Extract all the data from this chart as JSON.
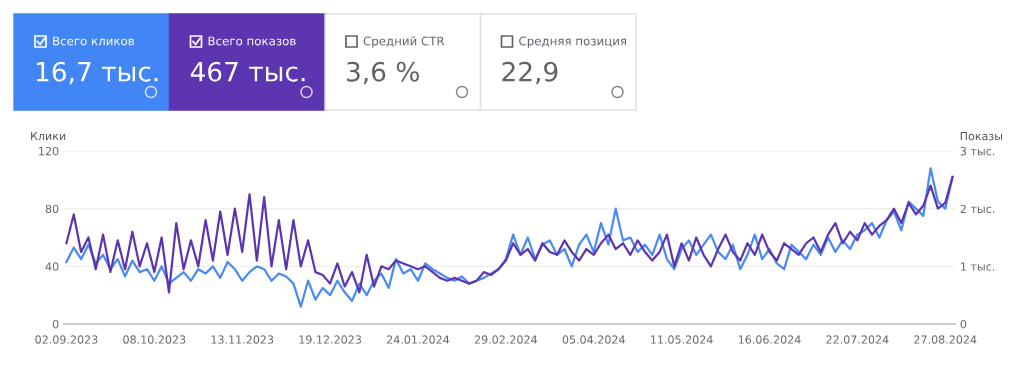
{
  "chart_data": [
    {
      "type": "other",
      "annotations": [
        "Всего кликов",
        "16,7 тыс.",
        "Всего показов",
        "467 тыс.",
        "Средний CTR",
        "3,6 %",
        "Средняя позиция",
        "22,9"
      ],
      "colors": [
        "#4285f4",
        "#5e35b1",
        null,
        null
      ]
    },
    {
      "type": "line",
      "ylabel": "Клики",
      "y2label": "Показы",
      "ylim": [
        0,
        120
      ],
      "yticks": [
        0,
        40,
        80,
        120
      ],
      "y2lim": [
        0,
        3
      ],
      "y2ticks": [
        0,
        {
          "value": 1,
          "label": "1 тыс."
        },
        {
          "value": 2,
          "label": "2 тыс."
        },
        {
          "value": 3,
          "label": "3 тыс."
        }
      ],
      "xlim": [
        "2023-09-01",
        "2024-08-31"
      ],
      "xticks": [
        {
          "value": "2023-09-02",
          "label": "02.09.2023"
        },
        {
          "value": "2023-10-08",
          "label": "08.10.2023"
        },
        {
          "value": "2023-11-13",
          "label": "13.11.2023"
        },
        {
          "value": "2023-12-19",
          "label": "19.12.2023"
        },
        {
          "value": "2024-01-24",
          "label": "24.01.2024"
        },
        {
          "value": "2024-02-29",
          "label": "29.02.2024"
        },
        {
          "value": "2024-04-05",
          "label": "05.04.2024"
        },
        {
          "value": "2024-05-11",
          "label": "11.05.2024"
        },
        {
          "value": "2024-06-16",
          "label": "16.06.2024"
        },
        {
          "value": "2024-07-22",
          "label": "22.07.2024"
        },
        {
          "value": "2024-08-27",
          "label": "27.08.2024"
        }
      ],
      "x": [
        "2023-09-02",
        "2023-09-05",
        "2023-09-08",
        "2023-09-11",
        "2023-09-14",
        "2023-09-17",
        "2023-09-20",
        "2023-09-23",
        "2023-09-26",
        "2023-09-29",
        "2023-10-02",
        "2023-10-05",
        "2023-10-08",
        "2023-10-11",
        "2023-10-14",
        "2023-10-17",
        "2023-10-20",
        "2023-10-23",
        "2023-10-26",
        "2023-10-29",
        "2023-11-01",
        "2023-11-04",
        "2023-11-07",
        "2023-11-10",
        "2023-11-13",
        "2023-11-16",
        "2023-11-19",
        "2023-11-22",
        "2023-11-25",
        "2023-11-28",
        "2023-12-01",
        "2023-12-04",
        "2023-12-07",
        "2023-12-10",
        "2023-12-13",
        "2023-12-16",
        "2023-12-19",
        "2023-12-22",
        "2023-12-25",
        "2023-12-28",
        "2023-12-31",
        "2024-01-03",
        "2024-01-06",
        "2024-01-09",
        "2024-01-12",
        "2024-01-15",
        "2024-01-18",
        "2024-01-21",
        "2024-01-24",
        "2024-01-27",
        "2024-01-30",
        "2024-02-02",
        "2024-02-05",
        "2024-02-08",
        "2024-02-11",
        "2024-02-14",
        "2024-02-17",
        "2024-02-20",
        "2024-02-23",
        "2024-02-26",
        "2024-02-29",
        "2024-03-03",
        "2024-03-06",
        "2024-03-09",
        "2024-03-12",
        "2024-03-15",
        "2024-03-18",
        "2024-03-21",
        "2024-03-24",
        "2024-03-27",
        "2024-03-30",
        "2024-04-02",
        "2024-04-05",
        "2024-04-08",
        "2024-04-11",
        "2024-04-14",
        "2024-04-17",
        "2024-04-20",
        "2024-04-23",
        "2024-04-26",
        "2024-04-29",
        "2024-05-02",
        "2024-05-05",
        "2024-05-08",
        "2024-05-11",
        "2024-05-14",
        "2024-05-17",
        "2024-05-20",
        "2024-05-23",
        "2024-05-26",
        "2024-05-29",
        "2024-06-01",
        "2024-06-04",
        "2024-06-07",
        "2024-06-10",
        "2024-06-13",
        "2024-06-16",
        "2024-06-19",
        "2024-06-22",
        "2024-06-25",
        "2024-06-28",
        "2024-07-01",
        "2024-07-04",
        "2024-07-07",
        "2024-07-10",
        "2024-07-13",
        "2024-07-16",
        "2024-07-19",
        "2024-07-22",
        "2024-07-25",
        "2024-07-28",
        "2024-07-31",
        "2024-08-03",
        "2024-08-06",
        "2024-08-09",
        "2024-08-12",
        "2024-08-15",
        "2024-08-18",
        "2024-08-21",
        "2024-08-24",
        "2024-08-27",
        "2024-08-30"
      ],
      "series": [
        {
          "color": "#5e35b1",
          "axis": "y2",
          "values": [
            1.4,
            1.9,
            1.25,
            1.5,
            0.95,
            1.55,
            0.9,
            1.45,
            0.95,
            1.6,
            1.0,
            1.4,
            0.9,
            1.5,
            0.55,
            1.75,
            0.95,
            1.45,
            1.0,
            1.8,
            1.1,
            1.95,
            1.2,
            2.0,
            1.25,
            2.25,
            1.1,
            2.2,
            1.0,
            1.8,
            0.95,
            1.8,
            1.0,
            1.45,
            0.9,
            0.85,
            0.7,
            1.05,
            0.65,
            0.9,
            0.55,
            1.2,
            0.65,
            1.0,
            0.95,
            1.1,
            1.05,
            1.0,
            0.95,
            1.0,
            0.9,
            0.8,
            0.75,
            0.8,
            0.75,
            0.7,
            0.75,
            0.9,
            0.85,
            0.95,
            1.1,
            1.4,
            1.2,
            1.3,
            1.1,
            1.4,
            1.25,
            1.2,
            1.45,
            1.25,
            1.1,
            1.3,
            1.2,
            1.4,
            1.55,
            1.3,
            1.4,
            1.2,
            1.45,
            1.25,
            1.1,
            1.25,
            1.55,
            1.0,
            1.4,
            1.1,
            1.5,
            1.2,
            1.0,
            1.3,
            1.55,
            1.25,
            1.1,
            1.4,
            1.2,
            1.55,
            1.25,
            1.1,
            1.4,
            1.3,
            1.2,
            1.4,
            1.5,
            1.25,
            1.55,
            1.75,
            1.4,
            1.6,
            1.45,
            1.75,
            1.55,
            1.7,
            1.8,
            2.0,
            1.75,
            2.1,
            1.9,
            2.05,
            2.4,
            2.0,
            2.1,
            2.55
          ]
        },
        {
          "color": "#4a8af4",
          "values": [
            43,
            53,
            45,
            55,
            42,
            48,
            38,
            45,
            33,
            44,
            36,
            38,
            30,
            40,
            28,
            32,
            36,
            30,
            38,
            35,
            40,
            32,
            43,
            38,
            30,
            36,
            40,
            38,
            30,
            35,
            33,
            28,
            12,
            30,
            17,
            25,
            20,
            30,
            22,
            16,
            28,
            20,
            30,
            35,
            25,
            45,
            35,
            38,
            30,
            42,
            38,
            35,
            32,
            30,
            33,
            28,
            30,
            32,
            35,
            38,
            45,
            62,
            48,
            60,
            45,
            55,
            58,
            48,
            52,
            40,
            55,
            62,
            50,
            70,
            55,
            80,
            58,
            60,
            50,
            55,
            48,
            62,
            45,
            38,
            52,
            58,
            48,
            55,
            62,
            50,
            45,
            55,
            38,
            48,
            62,
            45,
            52,
            42,
            38,
            55,
            50,
            45,
            55,
            48,
            60,
            50,
            58,
            52,
            62,
            65,
            70,
            60,
            72,
            78,
            65,
            85,
            80,
            75,
            108,
            85,
            80,
            102
          ]
        }
      ],
      "grid": "y",
      "line_style": "solid",
      "marker": "none"
    }
  ]
}
